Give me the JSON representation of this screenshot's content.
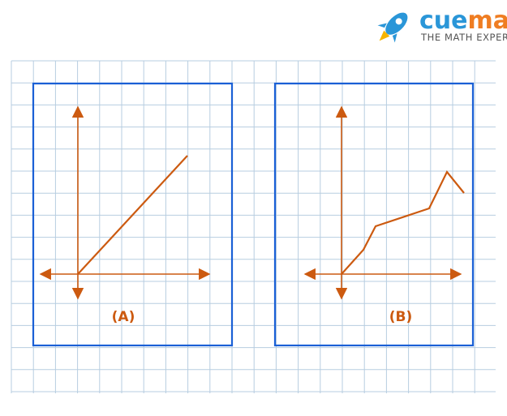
{
  "logo": {
    "word_prefix": "cue",
    "word_suffix": "math",
    "tagline": "THE MATH EXPERT",
    "icon": "rocket-icon",
    "colors": {
      "prefix": "#2a96d8",
      "suffix": "#ef7d22",
      "tagline": "#555555"
    }
  },
  "colors": {
    "grid": "#b7cde0",
    "frame": "#1a60d6",
    "curve": "#cc5a10"
  },
  "panels": [
    {
      "label": "(A)",
      "shape": "straight line through origin"
    },
    {
      "label": "(B)",
      "shape": "piecewise polyline"
    }
  ]
}
